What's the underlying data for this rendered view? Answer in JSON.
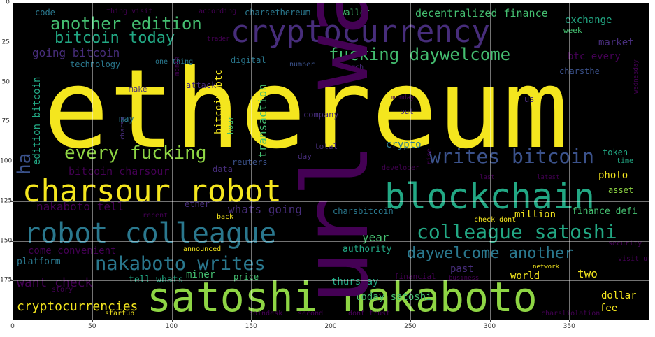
{
  "figure": {
    "type": "wordcloud",
    "x_ticks": [
      "0",
      "50",
      "100",
      "150",
      "200",
      "250",
      "300",
      "350"
    ],
    "y_ticks": [
      "0",
      "25",
      "50",
      "75",
      "100",
      "125",
      "150",
      "175"
    ],
    "xlim": [
      0,
      400
    ],
    "ylim": [
      0,
      200
    ]
  },
  "palette": {
    "yellow": "#f4e61e",
    "lime": "#8ed544",
    "green": "#44be70",
    "teal": "#22a884",
    "cyan": "#2a788e",
    "blue": "#3b528b",
    "indigo": "#472d7b",
    "purple": "#440154",
    "frame": "#000000"
  },
  "words": [
    {
      "text": "ethereum",
      "color": "yellow"
    },
    {
      "text": "cryptocurrency",
      "color": "indigo"
    },
    {
      "text": "blockchain",
      "color": "teal"
    },
    {
      "text": "satoshi nakaboto",
      "color": "lime"
    },
    {
      "text": "charsour robot",
      "color": "yellow"
    },
    {
      "text": "robot colleague",
      "color": "cyan"
    },
    {
      "text": "colleague satoshi",
      "color": "teal"
    },
    {
      "text": "nakaboto writes",
      "color": "cyan"
    },
    {
      "text": "daywelcome another",
      "color": "cyan"
    },
    {
      "text": "writes bitcoin",
      "color": "blue"
    },
    {
      "text": "every fucking",
      "color": "lime"
    },
    {
      "text": "fucking daywelcome",
      "color": "green"
    },
    {
      "text": "another edition",
      "color": "green"
    },
    {
      "text": "bitcoin today",
      "color": "teal"
    },
    {
      "text": "going bitcoin",
      "color": "indigo"
    },
    {
      "text": "decentralized finance",
      "color": "green"
    },
    {
      "text": "exchange",
      "color": "teal"
    },
    {
      "text": "week",
      "color": "green"
    },
    {
      "text": "market",
      "color": "indigo"
    },
    {
      "text": "btc every",
      "color": "purple"
    },
    {
      "text": "charsthe",
      "color": "blue"
    },
    {
      "text": "wallet",
      "color": "green"
    },
    {
      "text": "charsethereum",
      "color": "cyan"
    },
    {
      "text": "code",
      "color": "cyan"
    },
    {
      "text": "according",
      "color": "purple"
    },
    {
      "text": "thing visit",
      "color": "purple"
    },
    {
      "text": "trader",
      "color": "purple"
    },
    {
      "text": "technology",
      "color": "cyan"
    },
    {
      "text": "one thing",
      "color": "cyan"
    },
    {
      "text": "digital",
      "color": "cyan"
    },
    {
      "text": "number",
      "color": "blue"
    },
    {
      "text": "march",
      "color": "indigo"
    },
    {
      "text": "make",
      "color": "indigo"
    },
    {
      "text": "attack",
      "color": "indigo"
    },
    {
      "text": "may",
      "color": "cyan"
    },
    {
      "text": "company",
      "color": "indigo"
    },
    {
      "text": "crypto",
      "color": "cyan"
    },
    {
      "text": "put",
      "color": "indigo"
    },
    {
      "text": "us",
      "color": "indigo"
    },
    {
      "text": "monday",
      "color": "purple"
    },
    {
      "text": "token",
      "color": "teal"
    },
    {
      "text": "time",
      "color": "teal"
    },
    {
      "text": "total",
      "color": "indigo"
    },
    {
      "text": "day",
      "color": "indigo"
    },
    {
      "text": "reuters",
      "color": "blue"
    },
    {
      "text": "data",
      "color": "indigo"
    },
    {
      "text": "year",
      "color": "green"
    },
    {
      "text": "bitcoin charsour",
      "color": "purple"
    },
    {
      "text": "nakaboto tell",
      "color": "purple"
    },
    {
      "text": "ether",
      "color": "indigo"
    },
    {
      "text": "whats going",
      "color": "indigo"
    },
    {
      "text": "charsbitcoin",
      "color": "cyan"
    },
    {
      "text": "million",
      "color": "yellow"
    },
    {
      "text": "finance defi",
      "color": "green"
    },
    {
      "text": "photo",
      "color": "yellow"
    },
    {
      "text": "asset",
      "color": "lime"
    },
    {
      "text": "last",
      "color": "purple"
    },
    {
      "text": "latest",
      "color": "purple"
    },
    {
      "text": "developer",
      "color": "purple"
    },
    {
      "text": "recent",
      "color": "purple"
    },
    {
      "text": "back",
      "color": "yellow"
    },
    {
      "text": "check dont",
      "color": "yellow"
    },
    {
      "text": "come convenient",
      "color": "purple"
    },
    {
      "text": "platform",
      "color": "cyan"
    },
    {
      "text": "authority",
      "color": "teal"
    },
    {
      "text": "announced",
      "color": "yellow"
    },
    {
      "text": "want check",
      "color": "purple"
    },
    {
      "text": "tell whats",
      "color": "teal"
    },
    {
      "text": "miner",
      "color": "green"
    },
    {
      "text": "price",
      "color": "green"
    },
    {
      "text": "thursday",
      "color": "teal"
    },
    {
      "text": "past",
      "color": "indigo"
    },
    {
      "text": "world",
      "color": "yellow"
    },
    {
      "text": "two",
      "color": "yellow"
    },
    {
      "text": "network",
      "color": "yellow"
    },
    {
      "text": "business",
      "color": "purple"
    },
    {
      "text": "financial",
      "color": "purple"
    },
    {
      "text": "security",
      "color": "purple"
    },
    {
      "text": "visit url",
      "color": "purple"
    },
    {
      "text": "story",
      "color": "purple"
    },
    {
      "text": "cryptocurrencies",
      "color": "yellow"
    },
    {
      "text": "today satoshi",
      "color": "green"
    },
    {
      "text": "dollar",
      "color": "yellow"
    },
    {
      "text": "fee",
      "color": "yellow"
    },
    {
      "text": "startup",
      "color": "yellow"
    },
    {
      "text": "coindesk",
      "color": "purple"
    },
    {
      "text": "second",
      "color": "purple"
    },
    {
      "text": "dont trust",
      "color": "purple"
    },
    {
      "text": "charsliolation",
      "color": "purple"
    },
    {
      "text": "url want",
      "color": "purple"
    },
    {
      "text": "ha",
      "color": "blue"
    },
    {
      "text": "edition bitcoin",
      "color": "teal"
    },
    {
      "text": "transaction",
      "color": "green"
    },
    {
      "text": "bitcoin btc",
      "color": "yellow"
    },
    {
      "text": "hour",
      "color": "green"
    },
    {
      "text": "charsa",
      "color": "indigo"
    },
    {
      "text": "rise",
      "color": "purple"
    },
    {
      "text": "month",
      "color": "purple"
    },
    {
      "text": "wednesday",
      "color": "purple"
    },
    {
      "text": "convenient wrapper",
      "color": "purple"
    }
  ]
}
